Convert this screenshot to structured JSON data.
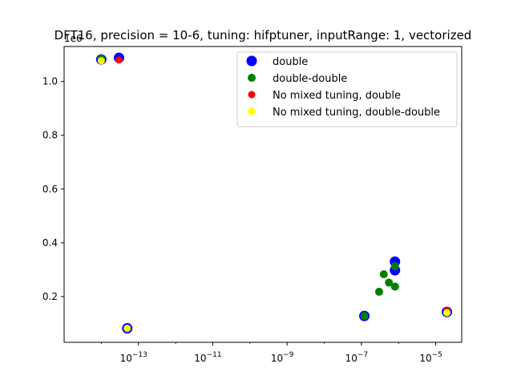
{
  "chart_data": {
    "type": "scatter",
    "title": "DFT16, precision = 10-6, tuning: hifptuner, inputRange: 1, vectorized",
    "xlabel": "",
    "ylabel": "",
    "x_scale": "log",
    "xlim": [
      1e-15,
      5e-05
    ],
    "ylim": [
      0.03,
      1.13
    ],
    "y_offset_label": "1e6",
    "x_ticks": [
      {
        "value": 1e-13,
        "base": "10",
        "exp": "−13"
      },
      {
        "value": 1e-11,
        "base": "10",
        "exp": "−11"
      },
      {
        "value": 1e-09,
        "base": "10",
        "exp": "−9"
      },
      {
        "value": 1e-07,
        "base": "10",
        "exp": "−7"
      },
      {
        "value": 1e-05,
        "base": "10",
        "exp": "−5"
      }
    ],
    "y_ticks": [
      "0.2",
      "0.4",
      "0.6",
      "0.8",
      "1.0"
    ],
    "grid": false,
    "legend_position": "top-right",
    "series": [
      {
        "name": "double",
        "color": "#0000ff",
        "marker_size": "large",
        "points": [
          {
            "x": 1e-14,
            "y": 1.082
          },
          {
            "x": 3e-14,
            "y": 1.088
          },
          {
            "x": 5e-14,
            "y": 0.082
          },
          {
            "x": 1.2e-07,
            "y": 0.128
          },
          {
            "x": 8e-07,
            "y": 0.33
          },
          {
            "x": 8e-07,
            "y": 0.298
          },
          {
            "x": 2e-05,
            "y": 0.143
          }
        ]
      },
      {
        "name": "double-double",
        "color": "#008000",
        "marker_size": "medium",
        "points": [
          {
            "x": 1e-14,
            "y": 1.085
          },
          {
            "x": 1.2e-07,
            "y": 0.128
          },
          {
            "x": 3e-07,
            "y": 0.218
          },
          {
            "x": 4e-07,
            "y": 0.283
          },
          {
            "x": 5.5e-07,
            "y": 0.252
          },
          {
            "x": 8e-07,
            "y": 0.237
          },
          {
            "x": 8e-07,
            "y": 0.313
          }
        ]
      },
      {
        "name": "No mixed tuning, double",
        "color": "#ff0000",
        "marker_size": "small",
        "points": [
          {
            "x": 3e-14,
            "y": 1.08
          },
          {
            "x": 2e-05,
            "y": 0.147
          }
        ]
      },
      {
        "name": "No mixed tuning, double-double",
        "color": "#ffff00",
        "marker_size": "small",
        "points": [
          {
            "x": 1e-14,
            "y": 1.077
          },
          {
            "x": 5e-14,
            "y": 0.082
          },
          {
            "x": 2e-05,
            "y": 0.14
          }
        ]
      }
    ]
  }
}
